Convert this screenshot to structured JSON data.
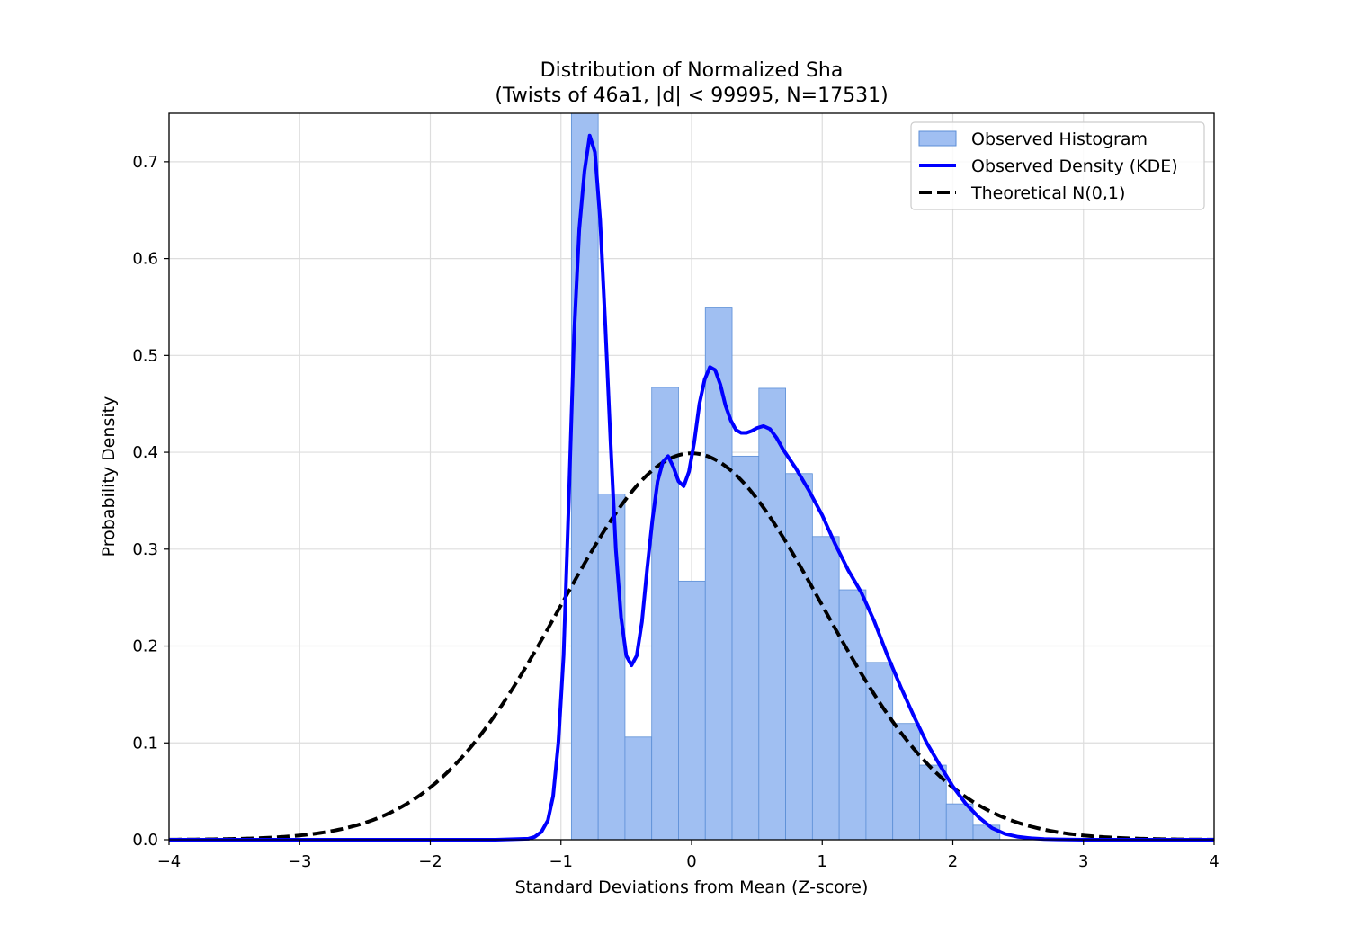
{
  "chart_data": {
    "type": "bar",
    "title_line1": "Distribution of Normalized Sha",
    "title_line2": "(Twists of 46a1, |d| < 99995, N=17531)",
    "xlabel": "Standard Deviations from Mean (Z-score)",
    "ylabel": "Probability Density",
    "xlim": [
      -4,
      4
    ],
    "ylim": [
      0,
      0.75
    ],
    "grid": true,
    "legend_position": "top-right",
    "x_ticks": [
      -4,
      -3,
      -2,
      -1,
      0,
      1,
      2,
      3,
      4
    ],
    "x_tick_labels": [
      "−4",
      "−3",
      "−2",
      "−1",
      "0",
      "1",
      "2",
      "3",
      "4"
    ],
    "y_ticks": [
      0,
      0.1,
      0.2,
      0.3,
      0.4,
      0.5,
      0.6,
      0.7
    ],
    "y_tick_labels": [
      "0.0",
      "0.1",
      "0.2",
      "0.3",
      "0.4",
      "0.5",
      "0.6",
      "0.7"
    ],
    "colors": {
      "histogram_fill": "#a0bff2",
      "histogram_edge": "#5b8ed6",
      "kde": "#0000ff",
      "theoretical": "#000000",
      "grid": "#dddddd"
    },
    "legend": [
      {
        "label": "Observed Histogram",
        "style": "patch"
      },
      {
        "label": "Observed Density (KDE)",
        "style": "solid"
      },
      {
        "label": "Theoretical N(0,1)",
        "style": "dashed"
      }
    ],
    "histogram": {
      "name": "Observed Histogram",
      "bin_start": -0.92,
      "bin_width": 0.205,
      "values": [
        0.75,
        0.357,
        0.106,
        0.467,
        0.267,
        0.549,
        0.396,
        0.466,
        0.378,
        0.313,
        0.258,
        0.183,
        0.12,
        0.077,
        0.037,
        0.015
      ]
    },
    "kde": {
      "name": "Observed Density (KDE)",
      "x": [
        -4,
        -1.5,
        -1.25,
        -1.2,
        -1.15,
        -1.1,
        -1.06,
        -1.02,
        -0.98,
        -0.94,
        -0.9,
        -0.86,
        -0.82,
        -0.78,
        -0.74,
        -0.7,
        -0.66,
        -0.62,
        -0.58,
        -0.54,
        -0.5,
        -0.46,
        -0.42,
        -0.38,
        -0.34,
        -0.3,
        -0.26,
        -0.22,
        -0.18,
        -0.14,
        -0.1,
        -0.06,
        -0.02,
        0.02,
        0.06,
        0.1,
        0.14,
        0.18,
        0.22,
        0.26,
        0.3,
        0.34,
        0.38,
        0.42,
        0.46,
        0.5,
        0.55,
        0.6,
        0.65,
        0.7,
        0.8,
        0.9,
        1.0,
        1.1,
        1.2,
        1.3,
        1.4,
        1.5,
        1.6,
        1.7,
        1.8,
        1.9,
        2.0,
        2.1,
        2.2,
        2.3,
        2.4,
        2.5,
        2.6,
        2.7,
        2.8,
        3.0,
        4.0
      ],
      "y": [
        0.0,
        0.0,
        0.001,
        0.003,
        0.008,
        0.02,
        0.045,
        0.1,
        0.19,
        0.35,
        0.52,
        0.63,
        0.69,
        0.727,
        0.71,
        0.64,
        0.53,
        0.41,
        0.3,
        0.23,
        0.19,
        0.18,
        0.19,
        0.225,
        0.28,
        0.33,
        0.37,
        0.39,
        0.396,
        0.385,
        0.37,
        0.365,
        0.38,
        0.41,
        0.45,
        0.475,
        0.488,
        0.485,
        0.47,
        0.448,
        0.433,
        0.423,
        0.42,
        0.42,
        0.422,
        0.425,
        0.427,
        0.424,
        0.415,
        0.403,
        0.383,
        0.36,
        0.335,
        0.305,
        0.278,
        0.255,
        0.225,
        0.19,
        0.158,
        0.128,
        0.1,
        0.077,
        0.055,
        0.037,
        0.023,
        0.012,
        0.006,
        0.003,
        0.0015,
        0.0007,
        0.0003,
        0.0,
        0.0
      ]
    },
    "theoretical": {
      "name": "Theoretical N(0,1)",
      "mean": 0,
      "std": 1
    }
  }
}
